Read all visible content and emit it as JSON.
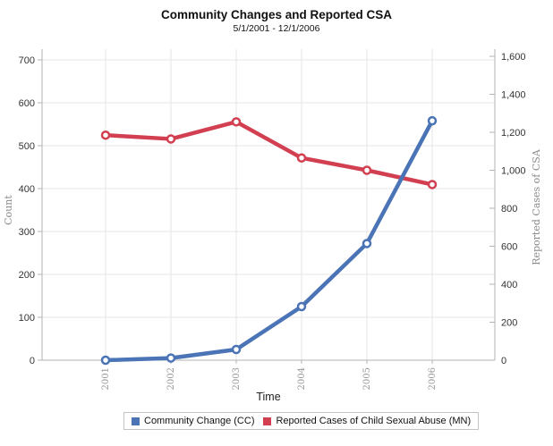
{
  "title": "Community Changes and Reported CSA",
  "subtitle": "5/1/2001 - 12/1/2006",
  "chart_data": {
    "type": "line",
    "x": [
      "2001",
      "2002",
      "2003",
      "2004",
      "2005",
      "2006"
    ],
    "xlabel": "Time",
    "ylabel_left": "Count",
    "ylabel_right": "Reported Cases of CSA",
    "left_axis": {
      "min": 0,
      "max": 700,
      "step": 100,
      "tick_labels": [
        "0",
        "100",
        "200",
        "300",
        "400",
        "500",
        "600",
        "700"
      ]
    },
    "right_axis": {
      "min": 0,
      "max": 1600,
      "step": 200,
      "tick_labels": [
        "0",
        "200",
        "400",
        "600",
        "800",
        "1,000",
        "1,200",
        "1,400",
        "1,600"
      ]
    },
    "grid": true,
    "legend_position": "bottom",
    "series": [
      {
        "name": "Community Change (CC)",
        "axis": "left",
        "color": "#4a74b5",
        "values": [
          0,
          5,
          25,
          125,
          272,
          558
        ]
      },
      {
        "name": "Reported Cases of Child Sexual Abuse (MN)",
        "axis": "right",
        "color": "#d23f51",
        "values": [
          1185,
          1165,
          1255,
          1065,
          1000,
          925
        ]
      }
    ],
    "grid_color": "#e5e5e5",
    "axis_color": "#b3b3b3",
    "tick_label_color": "#333333",
    "muted_label_color": "#999999"
  }
}
